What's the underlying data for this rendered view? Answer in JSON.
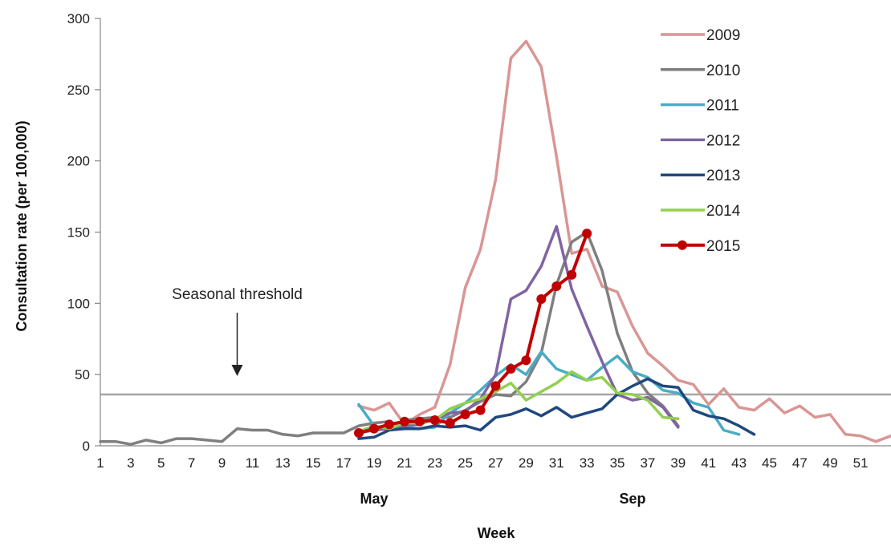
{
  "chart_data": {
    "type": "line",
    "xlabel": "Week",
    "ylabel": "Consultation rate (per 100,000)",
    "xlim": [
      1,
      53
    ],
    "ylim": [
      0,
      300
    ],
    "yticks": [
      0,
      50,
      100,
      150,
      200,
      250,
      300
    ],
    "xtick_labels": [
      "1",
      "3",
      "5",
      "7",
      "9",
      "11",
      "13",
      "15",
      "17",
      "19",
      "21",
      "23",
      "25",
      "27",
      "29",
      "31",
      "33",
      "35",
      "37",
      "39",
      "41",
      "43",
      "45",
      "47",
      "49",
      "51"
    ],
    "month_labels": [
      {
        "label": "May",
        "week": 19
      },
      {
        "label": "Sep",
        "week": 36
      }
    ],
    "legend_position": "top-right",
    "threshold": {
      "value": 36,
      "label": "Seasonal threshold",
      "arrow_week": 10
    },
    "series": [
      {
        "name": "2010-pre-season",
        "color": "#7f7f7f",
        "legend": false,
        "points": [
          [
            1,
            3
          ],
          [
            2,
            3
          ],
          [
            3,
            1
          ],
          [
            4,
            4
          ],
          [
            5,
            2
          ],
          [
            6,
            5
          ],
          [
            7,
            5
          ],
          [
            8,
            4
          ],
          [
            9,
            3
          ],
          [
            10,
            12
          ],
          [
            11,
            11
          ],
          [
            12,
            11
          ],
          [
            13,
            8
          ],
          [
            14,
            7
          ],
          [
            15,
            9
          ],
          [
            16,
            9
          ],
          [
            17,
            9
          ],
          [
            18,
            14
          ],
          [
            19,
            16
          ],
          [
            20,
            17
          ]
        ]
      },
      {
        "name": "2009",
        "color": "#d99694",
        "legend": true,
        "points": [
          [
            18,
            28
          ],
          [
            19,
            25
          ],
          [
            20,
            30
          ],
          [
            21,
            15
          ],
          [
            22,
            22
          ],
          [
            23,
            27
          ],
          [
            24,
            57
          ],
          [
            25,
            111
          ],
          [
            26,
            138
          ],
          [
            27,
            187
          ],
          [
            28,
            272
          ],
          [
            29,
            284
          ],
          [
            30,
            266
          ],
          [
            31,
            203
          ],
          [
            32,
            135
          ],
          [
            33,
            138
          ],
          [
            34,
            112
          ],
          [
            35,
            108
          ],
          [
            36,
            84
          ],
          [
            37,
            65
          ],
          [
            38,
            56
          ],
          [
            39,
            46
          ],
          [
            40,
            43
          ],
          [
            41,
            29
          ],
          [
            42,
            40
          ],
          [
            43,
            27
          ],
          [
            44,
            25
          ],
          [
            45,
            33
          ],
          [
            46,
            23
          ],
          [
            47,
            28
          ],
          [
            48,
            20
          ],
          [
            49,
            22
          ],
          [
            50,
            8
          ],
          [
            51,
            7
          ],
          [
            52,
            3
          ],
          [
            53,
            7
          ]
        ]
      },
      {
        "name": "2010",
        "color": "#7f7f7f",
        "legend": true,
        "points": [
          [
            21,
            18
          ],
          [
            22,
            19
          ],
          [
            23,
            20
          ],
          [
            24,
            20
          ],
          [
            25,
            25
          ],
          [
            26,
            31
          ],
          [
            27,
            36
          ],
          [
            28,
            35
          ],
          [
            29,
            45
          ],
          [
            30,
            65
          ],
          [
            31,
            113
          ],
          [
            32,
            143
          ],
          [
            33,
            150
          ],
          [
            34,
            123
          ],
          [
            35,
            79
          ],
          [
            36,
            52
          ],
          [
            37,
            37
          ],
          [
            38,
            28
          ],
          [
            39,
            14
          ]
        ]
      },
      {
        "name": "2011",
        "color": "#4bacc6",
        "legend": true,
        "points": [
          [
            18,
            29
          ],
          [
            19,
            14
          ],
          [
            20,
            11
          ],
          [
            21,
            13
          ],
          [
            22,
            12
          ],
          [
            23,
            13
          ],
          [
            24,
            23
          ],
          [
            25,
            30
          ],
          [
            26,
            39
          ],
          [
            27,
            49
          ],
          [
            28,
            57
          ],
          [
            29,
            50
          ],
          [
            30,
            66
          ],
          [
            31,
            54
          ],
          [
            32,
            50
          ],
          [
            33,
            46
          ],
          [
            34,
            55
          ],
          [
            35,
            63
          ],
          [
            36,
            52
          ],
          [
            37,
            48
          ],
          [
            38,
            39
          ],
          [
            39,
            37
          ],
          [
            40,
            30
          ],
          [
            41,
            27
          ],
          [
            42,
            11
          ],
          [
            43,
            8
          ]
        ]
      },
      {
        "name": "2012",
        "color": "#8064a2",
        "legend": true,
        "points": [
          [
            18,
            9
          ],
          [
            19,
            11
          ],
          [
            20,
            12
          ],
          [
            21,
            14
          ],
          [
            22,
            15
          ],
          [
            23,
            19
          ],
          [
            24,
            23
          ],
          [
            25,
            24
          ],
          [
            26,
            33
          ],
          [
            27,
            50
          ],
          [
            28,
            103
          ],
          [
            29,
            109
          ],
          [
            30,
            126
          ],
          [
            31,
            154
          ],
          [
            32,
            110
          ],
          [
            33,
            84
          ],
          [
            34,
            59
          ],
          [
            35,
            36
          ],
          [
            36,
            32
          ],
          [
            37,
            34
          ],
          [
            38,
            27
          ],
          [
            39,
            13
          ]
        ]
      },
      {
        "name": "2013",
        "color": "#1f497d",
        "legend": true,
        "points": [
          [
            18,
            5
          ],
          [
            19,
            6
          ],
          [
            20,
            11
          ],
          [
            21,
            12
          ],
          [
            22,
            12
          ],
          [
            23,
            14
          ],
          [
            24,
            13
          ],
          [
            25,
            14
          ],
          [
            26,
            11
          ],
          [
            27,
            20
          ],
          [
            28,
            22
          ],
          [
            29,
            26
          ],
          [
            30,
            21
          ],
          [
            31,
            27
          ],
          [
            32,
            20
          ],
          [
            33,
            23
          ],
          [
            34,
            26
          ],
          [
            35,
            36
          ],
          [
            36,
            42
          ],
          [
            37,
            47
          ],
          [
            38,
            42
          ],
          [
            39,
            41
          ],
          [
            40,
            25
          ],
          [
            41,
            21
          ],
          [
            42,
            19
          ],
          [
            43,
            14
          ],
          [
            44,
            8
          ]
        ]
      },
      {
        "name": "2014",
        "color": "#92d050",
        "legend": true,
        "points": [
          [
            18,
            10
          ],
          [
            19,
            14
          ],
          [
            20,
            12
          ],
          [
            21,
            16
          ],
          [
            22,
            16
          ],
          [
            23,
            18
          ],
          [
            24,
            26
          ],
          [
            25,
            30
          ],
          [
            26,
            33
          ],
          [
            27,
            38
          ],
          [
            28,
            44
          ],
          [
            29,
            32
          ],
          [
            30,
            38
          ],
          [
            31,
            44
          ],
          [
            32,
            52
          ],
          [
            33,
            46
          ],
          [
            34,
            48
          ],
          [
            35,
            37
          ],
          [
            36,
            36
          ],
          [
            37,
            32
          ],
          [
            38,
            20
          ],
          [
            39,
            19
          ]
        ]
      },
      {
        "name": "2015",
        "color": "#c00000",
        "legend": true,
        "markers": true,
        "points": [
          [
            18,
            9
          ],
          [
            19,
            12
          ],
          [
            20,
            15
          ],
          [
            21,
            17
          ],
          [
            22,
            17
          ],
          [
            23,
            18
          ],
          [
            24,
            16
          ],
          [
            25,
            22
          ],
          [
            26,
            25
          ],
          [
            27,
            42
          ],
          [
            28,
            54
          ],
          [
            29,
            60
          ],
          [
            30,
            103
          ],
          [
            31,
            112
          ],
          [
            32,
            120
          ],
          [
            33,
            149
          ]
        ]
      }
    ]
  }
}
